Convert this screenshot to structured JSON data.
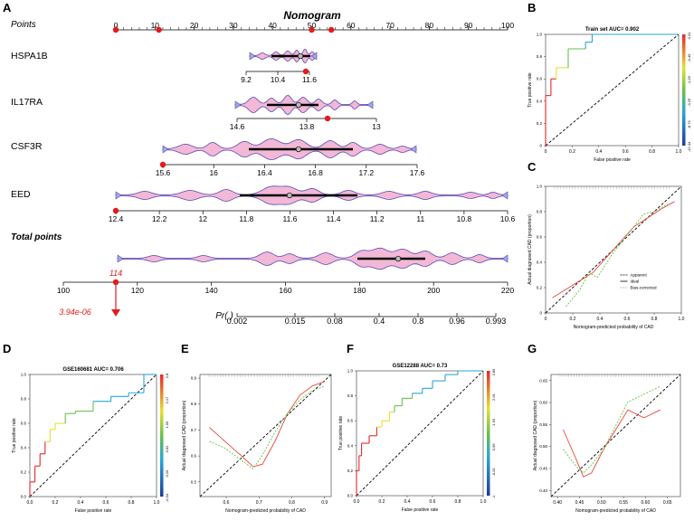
{
  "panels": {
    "A": "A",
    "B": "B",
    "C": "C",
    "D": "D",
    "E": "E",
    "F": "F",
    "G": "G"
  },
  "chart_data": [
    {
      "type": "nomogram",
      "panel": "A",
      "title": "Nomogram",
      "rows": [
        {
          "name": "Points",
          "ticks": [
            "0",
            "10",
            "20",
            "30",
            "40",
            "50",
            "60",
            "70",
            "80",
            "90",
            "100"
          ],
          "markers": [
            0,
            11,
            50,
            55
          ]
        },
        {
          "name": "HSPA1B",
          "ticks": [
            "9.2",
            "10.4",
            "11.6"
          ]
        },
        {
          "name": "IL17RA",
          "ticks": [
            "14.6",
            "13.8",
            "13"
          ]
        },
        {
          "name": "CSF3R",
          "ticks": [
            "15.6",
            "16",
            "16.4",
            "16.8",
            "17.2",
            "17.6"
          ]
        },
        {
          "name": "EED",
          "ticks": [
            "12.4",
            "12.2",
            "12",
            "11.8",
            "11.6",
            "11.4",
            "11.2",
            "11",
            "10.8",
            "10.6"
          ]
        },
        {
          "name": "Total points",
          "ticks": [
            "100",
            "120",
            "140",
            "160",
            "180",
            "200",
            "220"
          ]
        },
        {
          "name": "Pr( )",
          "ticks": [
            "0.002",
            "0.015",
            "0.08",
            "0.4",
            "0.8",
            "0.96",
            "0.993"
          ]
        }
      ],
      "total_points_value": "114",
      "probability_value": "3.94e-06"
    },
    {
      "type": "line",
      "panel": "B",
      "title": "Train set  AUC= 0.902",
      "xlabel": "False positive rate",
      "ylabel": "True positive rate",
      "xticks": [
        "0",
        "0.2",
        "0.4",
        "0.6",
        "0.8",
        "1.0"
      ],
      "yticks": [
        "0",
        "0.2",
        "0.4",
        "0.6",
        "0.8",
        "1.0"
      ],
      "colorbar_ticks": [
        "0.31",
        "-0.49",
        "-1.29",
        "-3.25",
        "-8.73",
        "-12.44"
      ],
      "x": [
        0,
        0,
        0.04,
        0.04,
        0.08,
        0.08,
        0.17,
        0.17,
        0.3,
        0.3,
        0.35,
        0.35,
        1
      ],
      "y": [
        0,
        0.45,
        0.45,
        0.6,
        0.6,
        0.7,
        0.7,
        0.87,
        0.87,
        0.93,
        0.93,
        1,
        1
      ]
    },
    {
      "type": "line",
      "panel": "C",
      "title": "",
      "xlabel": "Nomogram-predicted probability of CAD",
      "ylabel": "Actual diagnosed CAD (proportion)",
      "xticks": [
        "0",
        "0.2",
        "0.4",
        "0.6",
        "0.8",
        "1.0"
      ],
      "yticks": [
        "0",
        "0.2",
        "0.4",
        "0.6",
        "0.8",
        "1.0"
      ],
      "legend": [
        "Apparent",
        "Ideal",
        "Bias-corrected"
      ],
      "series": [
        {
          "name": "Apparent",
          "x": [
            0.05,
            0.2,
            0.35,
            0.5,
            0.65,
            0.75,
            0.85,
            0.95
          ],
          "y": [
            0.12,
            0.22,
            0.32,
            0.5,
            0.68,
            0.75,
            0.82,
            0.88
          ]
        },
        {
          "name": "Bias-corrected",
          "x": [
            0.15,
            0.25,
            0.32,
            0.38,
            0.5,
            0.65,
            0.72,
            0.8,
            0.9
          ],
          "y": [
            0.05,
            0.18,
            0.32,
            0.28,
            0.48,
            0.68,
            0.78,
            0.8,
            0.86
          ]
        }
      ]
    },
    {
      "type": "line",
      "panel": "D",
      "title": "GSE160681  AUC= 0.706",
      "xlabel": "False positive rate",
      "ylabel": "True positive rate",
      "xticks": [
        "0.0",
        "0.2",
        "0.4",
        "0.6",
        "0.8",
        "1.0"
      ],
      "yticks": [
        "0.0",
        "0.2",
        "0.4",
        "0.6",
        "0.8",
        "1.0"
      ],
      "colorbar_ticks": [
        "2.8",
        "2.17",
        "1.55",
        "0.92",
        "0.29",
        "-0.34"
      ],
      "x": [
        0,
        0,
        0.04,
        0.04,
        0.08,
        0.08,
        0.12,
        0.12,
        0.16,
        0.16,
        0.2,
        0.2,
        0.28,
        0.28,
        0.36,
        0.36,
        0.5,
        0.5,
        0.64,
        0.64,
        0.78,
        0.78,
        0.9,
        0.9,
        1
      ],
      "y": [
        0,
        0.12,
        0.12,
        0.25,
        0.25,
        0.35,
        0.35,
        0.45,
        0.45,
        0.55,
        0.55,
        0.6,
        0.6,
        0.68,
        0.68,
        0.7,
        0.7,
        0.78,
        0.78,
        0.82,
        0.82,
        0.85,
        0.85,
        1,
        1
      ]
    },
    {
      "type": "line",
      "panel": "E",
      "title": "",
      "xlabel": "Nomogram-predicted probability of CAD",
      "ylabel": "Actual diagnosed CAD (proportion)",
      "xticks": [
        "0.6",
        "0.7",
        "0.8",
        "0.9"
      ],
      "yticks": [
        "0.5",
        "0.6",
        "0.7",
        "0.8",
        "0.9"
      ],
      "series": [
        {
          "name": "Apparent",
          "x": [
            0.53,
            0.58,
            0.63,
            0.67,
            0.7,
            0.74,
            0.78,
            0.82,
            0.86,
            0.9
          ],
          "y": [
            0.72,
            0.66,
            0.6,
            0.55,
            0.56,
            0.66,
            0.78,
            0.86,
            0.9,
            0.92
          ]
        },
        {
          "name": "Bias-corrected",
          "x": [
            0.53,
            0.58,
            0.63,
            0.67,
            0.7,
            0.74,
            0.78,
            0.82,
            0.86,
            0.9
          ],
          "y": [
            0.66,
            0.63,
            0.58,
            0.54,
            0.6,
            0.7,
            0.78,
            0.84,
            0.88,
            0.9
          ]
        }
      ]
    },
    {
      "type": "line",
      "panel": "F",
      "title": "GSE12288  AUC= 0.73",
      "xlabel": "False positive rate",
      "ylabel": "True positive rate",
      "xticks": [
        "0.0",
        "0.2",
        "0.4",
        "0.6",
        "0.8",
        "1.0"
      ],
      "yticks": [
        "0.0",
        "0.2",
        "0.4",
        "0.6",
        "0.8",
        "1.0"
      ],
      "colorbar_ticks": [
        "3.89",
        "2.91",
        "1.93",
        "0.96",
        "-0.02",
        "-1"
      ],
      "x": [
        0,
        0,
        0.02,
        0.02,
        0.04,
        0.04,
        0.1,
        0.1,
        0.16,
        0.16,
        0.2,
        0.2,
        0.26,
        0.26,
        0.3,
        0.3,
        0.36,
        0.36,
        0.44,
        0.44,
        0.52,
        0.52,
        0.6,
        0.6,
        0.7,
        0.7,
        0.8,
        0.8,
        1
      ],
      "y": [
        0,
        0.2,
        0.2,
        0.32,
        0.32,
        0.42,
        0.42,
        0.48,
        0.48,
        0.55,
        0.55,
        0.6,
        0.6,
        0.67,
        0.67,
        0.72,
        0.72,
        0.78,
        0.78,
        0.82,
        0.82,
        0.86,
        0.86,
        0.92,
        0.92,
        0.97,
        0.97,
        1,
        1
      ]
    },
    {
      "type": "line",
      "panel": "G",
      "title": "",
      "xlabel": "Nomogram-predicted probability of CAD",
      "ylabel": "Actual diagnosed CAD (proportion)",
      "xticks": [
        "0.40",
        "0.45",
        "0.50",
        "0.55",
        "0.60",
        "0.65"
      ],
      "yticks": [
        "0.40",
        "0.45",
        "0.50",
        "0.55",
        "0.60",
        "0.65"
      ],
      "series": [
        {
          "name": "Apparent",
          "x": [
            0.4,
            0.43,
            0.45,
            0.47,
            0.5,
            0.53,
            0.56,
            0.6,
            0.64
          ],
          "y": [
            0.55,
            0.48,
            0.43,
            0.44,
            0.5,
            0.55,
            0.6,
            0.58,
            0.6
          ]
        },
        {
          "name": "Bias-corrected",
          "x": [
            0.4,
            0.43,
            0.45,
            0.47,
            0.5,
            0.53,
            0.56,
            0.6,
            0.64
          ],
          "y": [
            0.5,
            0.46,
            0.44,
            0.46,
            0.5,
            0.56,
            0.62,
            0.64,
            0.66
          ]
        }
      ]
    }
  ]
}
